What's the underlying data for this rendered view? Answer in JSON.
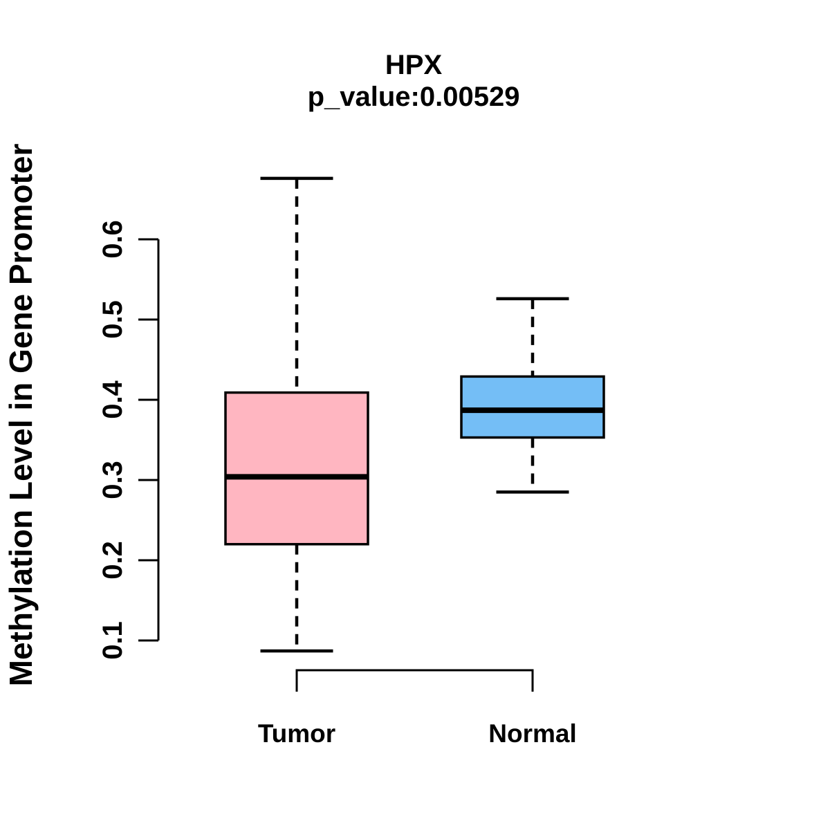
{
  "chart_data": {
    "type": "boxplot",
    "title": "HPX",
    "subtitle": "p_value:0.00529",
    "ylabel": "Methylation Level in Gene Promoter",
    "xlabel": "",
    "y_tick_labels": [
      "0.1",
      "0.2",
      "0.3",
      "0.4",
      "0.5",
      "0.6"
    ],
    "ylim": [
      0.06,
      0.7
    ],
    "grid": false,
    "legend": "none",
    "categories": [
      "Tumor",
      "Normal"
    ],
    "series": [
      {
        "name": "Tumor",
        "color": "#FFB6C1",
        "whisker_low": 0.087,
        "q1": 0.22,
        "median": 0.304,
        "q3": 0.409,
        "whisker_high": 0.676
      },
      {
        "name": "Normal",
        "color": "#74BEF6",
        "whisker_low": 0.285,
        "q1": 0.353,
        "median": 0.387,
        "q3": 0.429,
        "whisker_high": 0.526
      }
    ],
    "colors": {
      "tumor_fill": "#FFB6C1",
      "normal_fill": "#74BEF6",
      "line": "#000000",
      "background": "#FFFFFF"
    }
  }
}
